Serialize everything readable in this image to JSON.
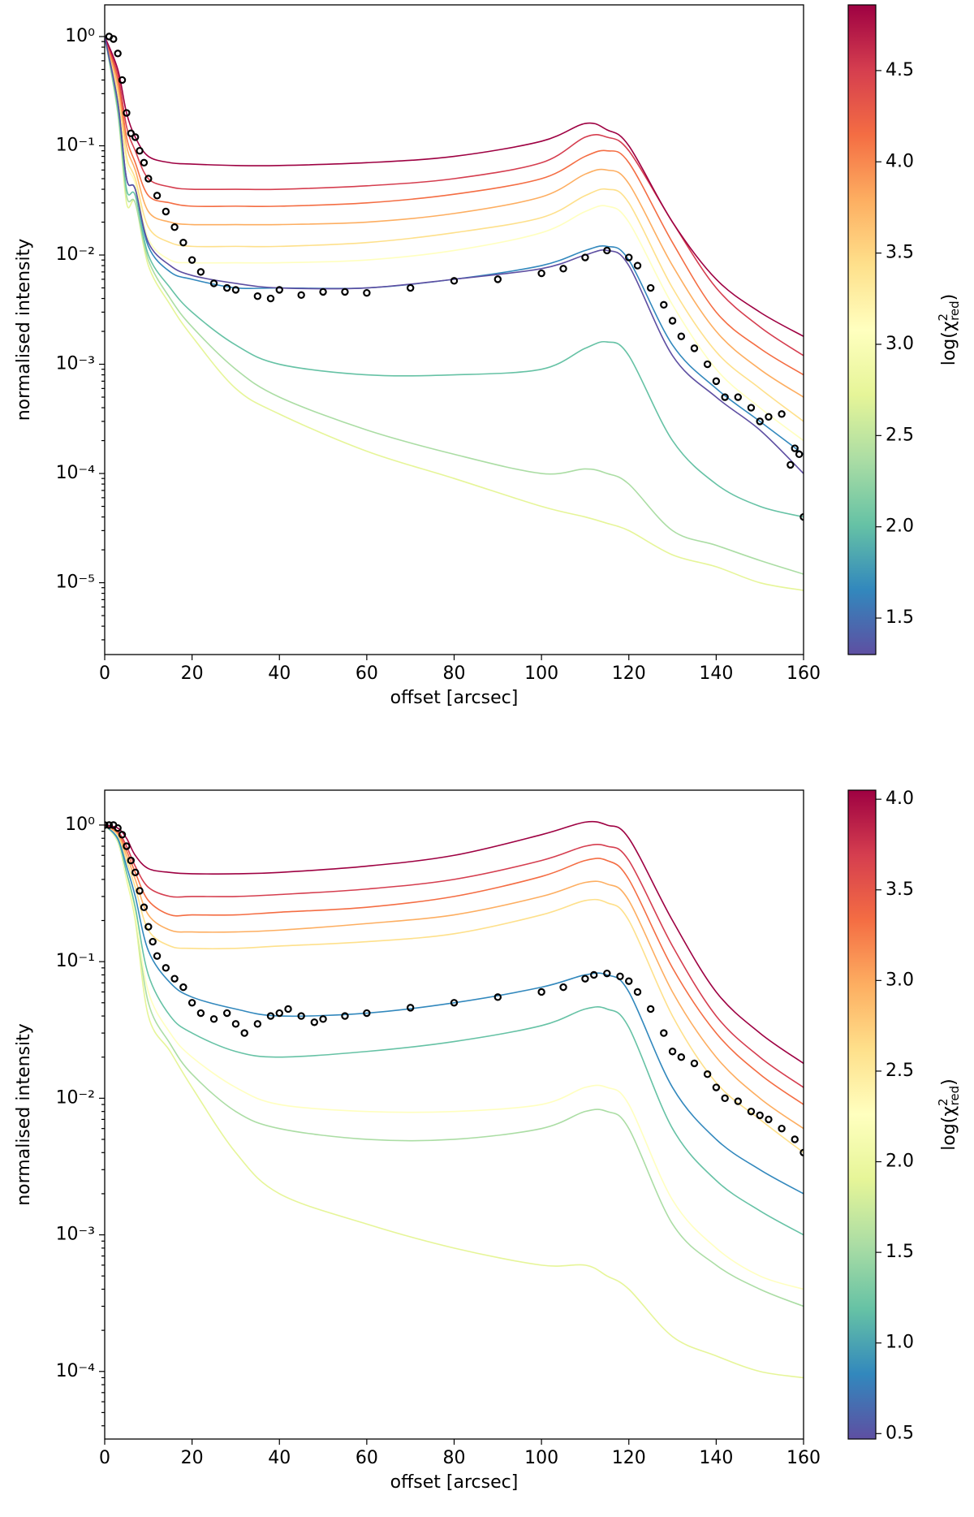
{
  "chart_data": [
    {
      "type": "line",
      "xlabel": "offset [arcsec]",
      "ylabel": "normalised intensity",
      "log_y": true,
      "xlim": [
        0,
        160
      ],
      "xticks": [
        0,
        20,
        40,
        60,
        80,
        100,
        120,
        140,
        160
      ],
      "ylim": [
        2.2e-06,
        1.95
      ],
      "yticks": [
        {
          "value": 1,
          "label": "10⁰"
        },
        {
          "value": 0.1,
          "label": "10⁻¹"
        },
        {
          "value": 0.01,
          "label": "10⁻²"
        },
        {
          "value": 0.001,
          "label": "10⁻³"
        },
        {
          "value": 0.0001,
          "label": "10⁻⁴"
        },
        {
          "value": 1e-05,
          "label": "10⁻⁵"
        }
      ],
      "x": [
        0,
        3,
        5,
        7,
        10,
        15,
        20,
        30,
        40,
        60,
        80,
        100,
        110,
        115,
        120,
        130,
        140,
        150,
        160
      ],
      "series": [
        {
          "color": "#e6f598",
          "values": [
            1,
            0.2,
            0.03,
            0.03,
            0.008,
            0.0035,
            0.0018,
            0.0006,
            0.00035,
            0.00016,
            9e-05,
            5e-05,
            4e-05,
            3.5e-05,
            3e-05,
            1.8e-05,
            1.4e-05,
            1e-05,
            8.5e-06
          ]
        },
        {
          "color": "#abdda4",
          "values": [
            1,
            0.2,
            0.035,
            0.03,
            0.009,
            0.004,
            0.0022,
            0.0009,
            0.0005,
            0.00025,
            0.00015,
            0.0001,
            0.00011,
            0.0001,
            8e-05,
            3e-05,
            2.2e-05,
            1.6e-05,
            1.2e-05
          ]
        },
        {
          "color": "#66c2a5",
          "values": [
            1,
            0.22,
            0.04,
            0.035,
            0.01,
            0.005,
            0.003,
            0.0015,
            0.001,
            0.0008,
            0.0008,
            0.0009,
            0.0014,
            0.0016,
            0.0012,
            0.0002,
            8e-05,
            5e-05,
            4e-05
          ]
        },
        {
          "color": "#ffffbf",
          "values": [
            1,
            0.28,
            0.07,
            0.045,
            0.014,
            0.009,
            0.0085,
            0.0085,
            0.0085,
            0.009,
            0.011,
            0.016,
            0.025,
            0.028,
            0.02,
            0.0035,
            0.0009,
            0.0004,
            0.0002
          ]
        },
        {
          "color": "#fee08b",
          "values": [
            1,
            0.3,
            0.08,
            0.05,
            0.018,
            0.013,
            0.012,
            0.012,
            0.012,
            0.013,
            0.016,
            0.022,
            0.035,
            0.04,
            0.03,
            0.005,
            0.0013,
            0.0006,
            0.0003
          ]
        },
        {
          "color": "#fdae61",
          "values": [
            1,
            0.35,
            0.1,
            0.06,
            0.025,
            0.02,
            0.019,
            0.019,
            0.019,
            0.02,
            0.024,
            0.034,
            0.055,
            0.06,
            0.045,
            0.008,
            0.002,
            0.0009,
            0.0005
          ]
        },
        {
          "color": "#f46d43",
          "values": [
            1,
            0.4,
            0.12,
            0.07,
            0.035,
            0.03,
            0.028,
            0.028,
            0.028,
            0.03,
            0.036,
            0.05,
            0.08,
            0.09,
            0.07,
            0.013,
            0.003,
            0.0014,
            0.0008
          ]
        },
        {
          "color": "#d53e4f",
          "values": [
            1,
            0.45,
            0.15,
            0.09,
            0.05,
            0.042,
            0.04,
            0.04,
            0.04,
            0.043,
            0.05,
            0.07,
            0.12,
            0.12,
            0.09,
            0.02,
            0.005,
            0.0022,
            0.0012
          ]
        },
        {
          "color": "#9e0142",
          "values": [
            1,
            0.5,
            0.2,
            0.12,
            0.08,
            0.07,
            0.068,
            0.066,
            0.066,
            0.07,
            0.08,
            0.11,
            0.16,
            0.14,
            0.1,
            0.02,
            0.006,
            0.003,
            0.0018
          ]
        },
        {
          "color": "#3288bd",
          "values": [
            1,
            0.25,
            0.05,
            0.04,
            0.012,
            0.007,
            0.006,
            0.005,
            0.005,
            0.005,
            0.006,
            0.008,
            0.011,
            0.012,
            0.009,
            0.0015,
            0.0006,
            0.0003,
            0.00015
          ]
        },
        {
          "color": "#5e4fa2",
          "values": [
            1,
            0.25,
            0.05,
            0.04,
            0.013,
            0.008,
            0.0065,
            0.0055,
            0.005,
            0.005,
            0.006,
            0.0075,
            0.01,
            0.011,
            0.008,
            0.0012,
            0.0005,
            0.00025,
            0.0001
          ]
        }
      ],
      "observed": {
        "x": [
          1,
          2,
          3,
          4,
          5,
          6,
          7,
          8,
          9,
          10,
          12,
          14,
          16,
          18,
          20,
          22,
          25,
          28,
          30,
          35,
          38,
          40,
          45,
          50,
          55,
          60,
          70,
          80,
          90,
          100,
          105,
          110,
          115,
          120,
          122,
          125,
          128,
          130,
          132,
          135,
          138,
          140,
          142,
          145,
          148,
          150,
          152,
          155,
          157,
          158,
          159,
          160
        ],
        "values": [
          1,
          0.95,
          0.7,
          0.4,
          0.2,
          0.13,
          0.12,
          0.09,
          0.07,
          0.05,
          0.035,
          0.025,
          0.018,
          0.013,
          0.009,
          0.007,
          0.0055,
          0.005,
          0.0048,
          0.0042,
          0.004,
          0.0048,
          0.0043,
          0.0046,
          0.0046,
          0.0045,
          0.005,
          0.0058,
          0.006,
          0.0068,
          0.0075,
          0.0095,
          0.011,
          0.0095,
          0.008,
          0.005,
          0.0035,
          0.0025,
          0.0018,
          0.0014,
          0.001,
          0.0007,
          0.0005,
          0.0005,
          0.0004,
          0.0003,
          0.00033,
          0.00035,
          0.00012,
          0.00017,
          0.00015,
          4e-05
        ]
      },
      "colorbar": {
        "label": {
          "prefix": "log(χ",
          "sup": "2",
          "sub": "red",
          "suffix": ")"
        },
        "clim": [
          1.3,
          4.86
        ],
        "ticks": [
          1.5,
          {
            "value": 2,
            "label": "2.0"
          },
          2.5,
          {
            "value": 3,
            "label": "3.0"
          },
          3.5,
          {
            "value": 4,
            "label": "4.0"
          },
          4.5
        ],
        "colors": [
          "#5e4fa2",
          "#3288bd",
          "#66c2a5",
          "#abdda4",
          "#e6f598",
          "#ffffbf",
          "#fee08b",
          "#fdae61",
          "#f46d43",
          "#d53e4f",
          "#9e0142"
        ]
      }
    },
    {
      "type": "line",
      "xlabel": "offset [arcsec]",
      "ylabel": "normalised intensity",
      "log_y": true,
      "xlim": [
        0,
        160
      ],
      "xticks": [
        0,
        20,
        40,
        60,
        80,
        100,
        120,
        140,
        160
      ],
      "ylim": [
        3.2e-05,
        1.8
      ],
      "yticks": [
        {
          "value": 1,
          "label": "10⁰"
        },
        {
          "value": 0.1,
          "label": "10⁻¹"
        },
        {
          "value": 0.01,
          "label": "10⁻²"
        },
        {
          "value": 0.001,
          "label": "10⁻³"
        },
        {
          "value": 0.0001,
          "label": "10⁻⁴"
        }
      ],
      "x": [
        0,
        3,
        5,
        7,
        10,
        15,
        20,
        30,
        40,
        60,
        80,
        100,
        110,
        115,
        120,
        130,
        140,
        150,
        160
      ],
      "series": [
        {
          "color": "#e6f598",
          "values": [
            1,
            0.75,
            0.4,
            0.2,
            0.04,
            0.022,
            0.012,
            0.004,
            0.002,
            0.0012,
            0.0008,
            0.0006,
            0.0006,
            0.0005,
            0.0004,
            0.00018,
            0.00013,
            0.0001,
            9e-05
          ]
        },
        {
          "color": "#abdda4",
          "values": [
            1,
            0.76,
            0.42,
            0.22,
            0.05,
            0.025,
            0.015,
            0.008,
            0.006,
            0.005,
            0.005,
            0.006,
            0.008,
            0.008,
            0.006,
            0.0012,
            0.0006,
            0.0004,
            0.0003
          ]
        },
        {
          "color": "#ffffbf",
          "values": [
            1,
            0.76,
            0.42,
            0.22,
            0.06,
            0.03,
            0.02,
            0.012,
            0.009,
            0.008,
            0.008,
            0.009,
            0.012,
            0.012,
            0.009,
            0.0018,
            0.0008,
            0.0005,
            0.0004
          ]
        },
        {
          "color": "#66c2a5",
          "values": [
            1,
            0.78,
            0.45,
            0.25,
            0.08,
            0.04,
            0.03,
            0.022,
            0.02,
            0.022,
            0.026,
            0.034,
            0.045,
            0.045,
            0.033,
            0.006,
            0.0025,
            0.0015,
            0.001
          ]
        },
        {
          "color": "#3288bd",
          "values": [
            1,
            0.8,
            0.5,
            0.3,
            0.12,
            0.07,
            0.055,
            0.045,
            0.04,
            0.042,
            0.05,
            0.065,
            0.08,
            0.08,
            0.06,
            0.012,
            0.005,
            0.003,
            0.002
          ]
        },
        {
          "color": "#fee08b",
          "values": [
            1,
            0.84,
            0.55,
            0.35,
            0.17,
            0.13,
            0.125,
            0.125,
            0.13,
            0.14,
            0.16,
            0.22,
            0.28,
            0.27,
            0.2,
            0.04,
            0.013,
            0.007,
            0.004
          ]
        },
        {
          "color": "#fdae61",
          "values": [
            1,
            0.86,
            0.6,
            0.4,
            0.22,
            0.17,
            0.165,
            0.165,
            0.17,
            0.19,
            0.22,
            0.3,
            0.38,
            0.37,
            0.28,
            0.06,
            0.02,
            0.01,
            0.006
          ]
        },
        {
          "color": "#f46d43",
          "values": [
            1,
            0.88,
            0.65,
            0.45,
            0.28,
            0.22,
            0.22,
            0.22,
            0.23,
            0.25,
            0.3,
            0.42,
            0.55,
            0.55,
            0.4,
            0.09,
            0.03,
            0.015,
            0.009
          ]
        },
        {
          "color": "#d53e4f",
          "values": [
            1,
            0.9,
            0.7,
            0.5,
            0.35,
            0.3,
            0.3,
            0.3,
            0.31,
            0.34,
            0.4,
            0.55,
            0.7,
            0.7,
            0.55,
            0.13,
            0.04,
            0.02,
            0.012
          ]
        },
        {
          "color": "#9e0142",
          "values": [
            1,
            0.95,
            0.8,
            0.6,
            0.48,
            0.45,
            0.44,
            0.44,
            0.45,
            0.5,
            0.6,
            0.85,
            1.05,
            1.0,
            0.8,
            0.2,
            0.06,
            0.03,
            0.018
          ]
        }
      ],
      "observed": {
        "x": [
          0,
          1,
          2,
          3,
          4,
          5,
          6,
          7,
          8,
          9,
          10,
          11,
          12,
          14,
          16,
          18,
          20,
          22,
          25,
          28,
          30,
          32,
          35,
          38,
          40,
          42,
          45,
          48,
          50,
          55,
          60,
          70,
          80,
          90,
          100,
          105,
          110,
          112,
          115,
          118,
          120,
          122,
          125,
          128,
          130,
          132,
          135,
          138,
          140,
          142,
          145,
          148,
          150,
          152,
          155,
          158,
          160
        ],
        "values": [
          1,
          1,
          1,
          0.95,
          0.85,
          0.7,
          0.55,
          0.45,
          0.33,
          0.25,
          0.18,
          0.14,
          0.11,
          0.09,
          0.075,
          0.065,
          0.05,
          0.042,
          0.038,
          0.042,
          0.035,
          0.03,
          0.035,
          0.04,
          0.042,
          0.045,
          0.04,
          0.036,
          0.038,
          0.04,
          0.042,
          0.046,
          0.05,
          0.055,
          0.06,
          0.065,
          0.075,
          0.08,
          0.082,
          0.078,
          0.072,
          0.06,
          0.045,
          0.03,
          0.022,
          0.02,
          0.018,
          0.015,
          0.012,
          0.01,
          0.0095,
          0.008,
          0.0075,
          0.007,
          0.006,
          0.005,
          0.004
        ]
      },
      "colorbar": {
        "label": {
          "prefix": "log(χ",
          "sup": "2",
          "sub": "red",
          "suffix": ")"
        },
        "clim": [
          0.47,
          4.05
        ],
        "ticks": [
          0.5,
          {
            "value": 1,
            "label": "1.0"
          },
          1.5,
          {
            "value": 2,
            "label": "2.0"
          },
          2.5,
          {
            "value": 3,
            "label": "3.0"
          },
          3.5,
          {
            "value": 4,
            "label": "4.0"
          }
        ],
        "colors": [
          "#5e4fa2",
          "#3288bd",
          "#66c2a5",
          "#abdda4",
          "#e6f598",
          "#ffffbf",
          "#fee08b",
          "#fdae61",
          "#f46d43",
          "#d53e4f",
          "#9e0142"
        ]
      }
    }
  ]
}
